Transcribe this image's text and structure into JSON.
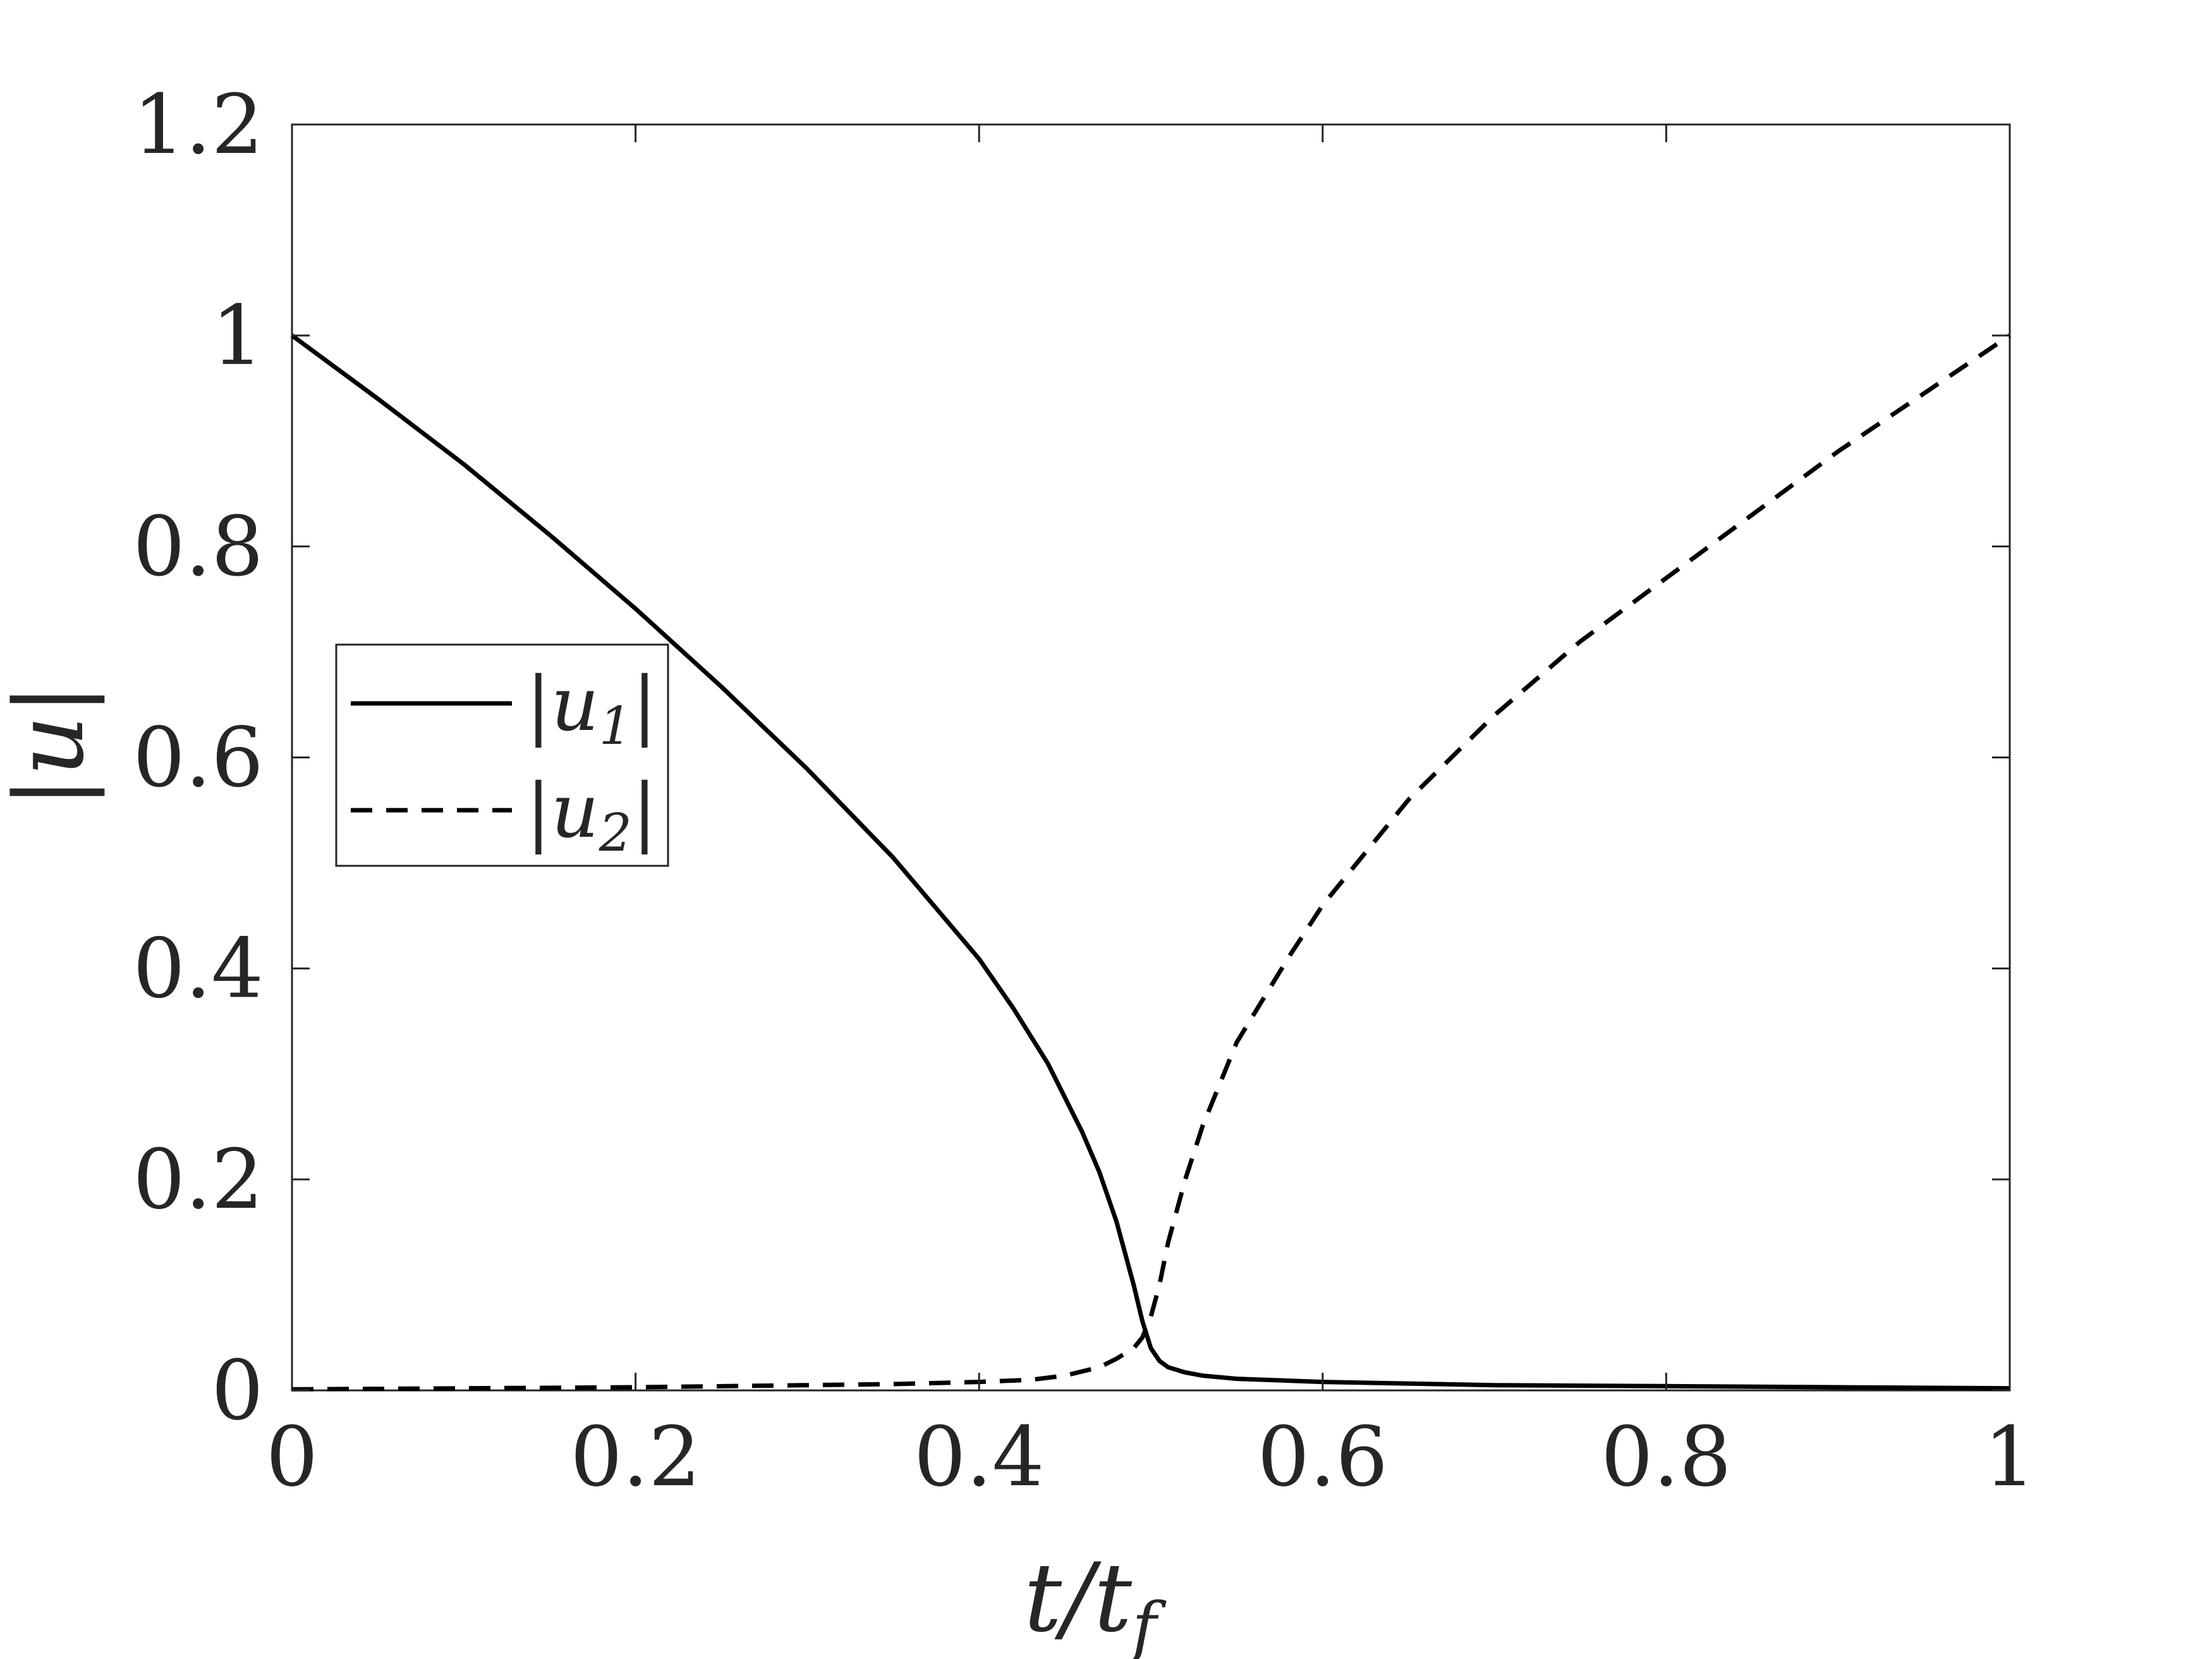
{
  "chart_data": {
    "type": "line",
    "xlabel": "t/t_f",
    "ylabel": "|u|",
    "xlim": [
      0,
      1
    ],
    "ylim": [
      0,
      1.2
    ],
    "xticks": [
      "0",
      "0.2",
      "0.4",
      "0.6",
      "0.8",
      "1"
    ],
    "yticks": [
      "0",
      "0.2",
      "0.4",
      "0.6",
      "0.8",
      "1",
      "1.2"
    ],
    "grid": false,
    "legend_position": "left-middle",
    "series": [
      {
        "name": "|u_1|",
        "style": "solid",
        "color": "#000000",
        "x": [
          0,
          0.05,
          0.1,
          0.15,
          0.2,
          0.25,
          0.3,
          0.35,
          0.4,
          0.42,
          0.44,
          0.46,
          0.47,
          0.48,
          0.49,
          0.495,
          0.5,
          0.505,
          0.51,
          0.52,
          0.53,
          0.55,
          0.6,
          0.7,
          0.8,
          0.9,
          1.0
        ],
        "y": [
          1.0,
          0.94,
          0.878,
          0.811,
          0.741,
          0.667,
          0.589,
          0.505,
          0.409,
          0.362,
          0.31,
          0.245,
          0.207,
          0.16,
          0.1,
          0.066,
          0.04,
          0.028,
          0.022,
          0.017,
          0.014,
          0.011,
          0.008,
          0.005,
          0.004,
          0.003,
          0.002
        ]
      },
      {
        "name": "|u_2|",
        "style": "dashed",
        "color": "#000000",
        "x": [
          0,
          0.1,
          0.2,
          0.3,
          0.35,
          0.4,
          0.43,
          0.45,
          0.47,
          0.48,
          0.49,
          0.495,
          0.5,
          0.505,
          0.51,
          0.52,
          0.53,
          0.55,
          0.58,
          0.6,
          0.65,
          0.7,
          0.75,
          0.8,
          0.85,
          0.9,
          0.95,
          1.0
        ],
        "y": [
          0.001,
          0.002,
          0.003,
          0.005,
          0.006,
          0.008,
          0.01,
          0.014,
          0.022,
          0.03,
          0.04,
          0.05,
          0.07,
          0.1,
          0.14,
          0.2,
          0.25,
          0.33,
          0.41,
          0.46,
          0.56,
          0.64,
          0.71,
          0.77,
          0.83,
          0.89,
          0.945,
          1.0
        ]
      }
    ]
  }
}
